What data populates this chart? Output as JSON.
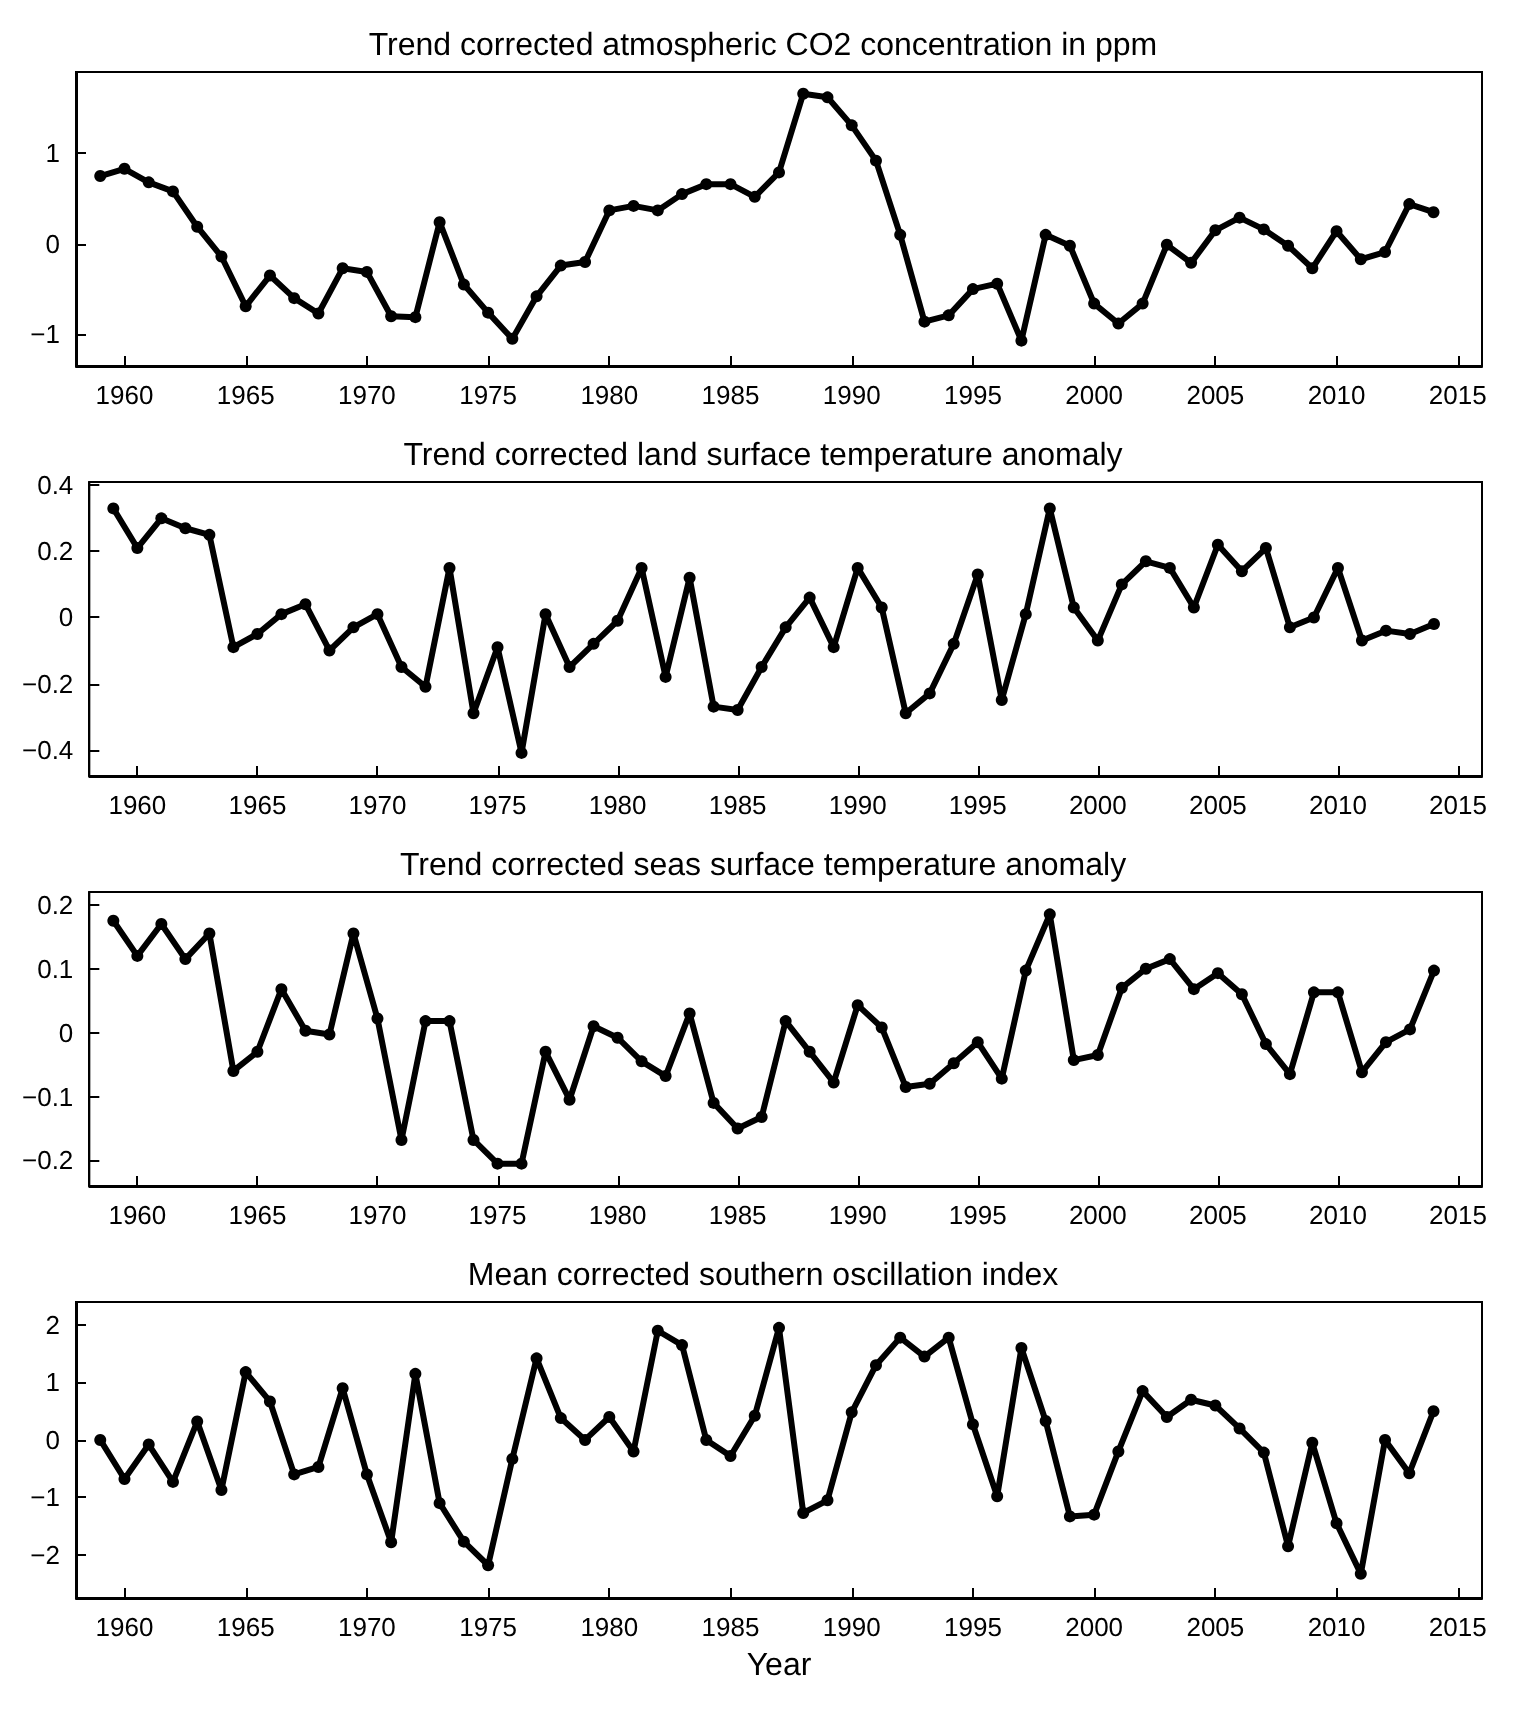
{
  "chart_data": [
    {
      "type": "line",
      "title": "Trend corrected atmospheric CO2 concentration in ppm",
      "color": "#000000",
      "marker": "circle",
      "x": [
        1959,
        1960,
        1961,
        1962,
        1963,
        1964,
        1965,
        1966,
        1967,
        1968,
        1969,
        1970,
        1971,
        1972,
        1973,
        1974,
        1975,
        1976,
        1977,
        1978,
        1979,
        1980,
        1981,
        1982,
        1983,
        1984,
        1985,
        1986,
        1987,
        1988,
        1989,
        1990,
        1991,
        1992,
        1993,
        1994,
        1995,
        1996,
        1997,
        1998,
        1999,
        2000,
        2001,
        2002,
        2003,
        2004,
        2005,
        2006,
        2007,
        2008,
        2009,
        2010,
        2011,
        2012,
        2013,
        2014
      ],
      "values": [
        0.75,
        0.83,
        0.68,
        0.58,
        0.19,
        -0.14,
        -0.69,
        -0.35,
        -0.6,
        -0.77,
        -0.27,
        -0.31,
        -0.8,
        -0.81,
        0.24,
        -0.45,
        -0.76,
        -1.05,
        -0.58,
        -0.24,
        -0.2,
        0.37,
        0.42,
        0.37,
        0.55,
        0.66,
        0.66,
        0.52,
        0.79,
        1.66,
        1.62,
        1.31,
        0.92,
        0.1,
        -0.86,
        -0.79,
        -0.5,
        -0.44,
        -1.07,
        0.1,
        -0.02,
        -0.66,
        -0.88,
        -0.66,
        -0.01,
        -0.21,
        0.15,
        0.29,
        0.16,
        -0.02,
        -0.27,
        0.14,
        -0.17,
        -0.09,
        0.44,
        0.35
      ],
      "xlim": [
        1958,
        2016
      ],
      "xticks": [
        1960,
        1965,
        1970,
        1975,
        1980,
        1985,
        1990,
        1995,
        2000,
        2005,
        2010,
        2015
      ],
      "ylim": [
        -1.35,
        1.9
      ],
      "yticks": [
        -1,
        0,
        1
      ]
    },
    {
      "type": "line",
      "title": "Trend corrected land surface temperature anomaly",
      "color": "#000000",
      "marker": "circle",
      "x": [
        1959,
        1960,
        1961,
        1962,
        1963,
        1964,
        1965,
        1966,
        1967,
        1968,
        1969,
        1970,
        1971,
        1972,
        1973,
        1974,
        1975,
        1976,
        1977,
        1978,
        1979,
        1980,
        1981,
        1982,
        1983,
        1984,
        1985,
        1986,
        1987,
        1988,
        1989,
        1990,
        1991,
        1992,
        1993,
        1994,
        1995,
        1996,
        1997,
        1998,
        1999,
        2000,
        2001,
        2002,
        2003,
        2004,
        2005,
        2006,
        2007,
        2008,
        2009,
        2010,
        2011,
        2012,
        2013,
        2014
      ],
      "values": [
        0.33,
        0.21,
        0.3,
        0.27,
        0.25,
        -0.09,
        -0.05,
        0.01,
        0.04,
        -0.1,
        -0.03,
        0.01,
        -0.15,
        -0.21,
        0.15,
        -0.29,
        -0.09,
        -0.41,
        0.01,
        -0.15,
        -0.08,
        -0.01,
        0.15,
        -0.18,
        0.12,
        -0.27,
        -0.28,
        -0.15,
        -0.03,
        0.06,
        -0.09,
        0.15,
        0.03,
        -0.29,
        -0.23,
        -0.08,
        0.13,
        -0.25,
        0.01,
        0.33,
        0.03,
        -0.07,
        0.1,
        0.17,
        0.15,
        0.03,
        0.22,
        0.14,
        0.21,
        -0.03,
        0,
        0.15,
        -0.07,
        -0.04,
        -0.05,
        -0.02
      ],
      "xlim": [
        1958,
        2016
      ],
      "xticks": [
        1960,
        1965,
        1970,
        1975,
        1980,
        1985,
        1990,
        1995,
        2000,
        2005,
        2010,
        2015
      ],
      "ylim": [
        -0.48,
        0.41
      ],
      "yticks": [
        -0.4,
        -0.2,
        0,
        0.2,
        0.4
      ]
    },
    {
      "type": "line",
      "title": "Trend corrected seas surface temperature anomaly",
      "color": "#000000",
      "marker": "circle",
      "x": [
        1959,
        1960,
        1961,
        1962,
        1963,
        1964,
        1965,
        1966,
        1967,
        1968,
        1969,
        1970,
        1971,
        1972,
        1973,
        1974,
        1975,
        1976,
        1977,
        1978,
        1979,
        1980,
        1981,
        1982,
        1983,
        1984,
        1985,
        1986,
        1987,
        1988,
        1989,
        1990,
        1991,
        1992,
        1993,
        1994,
        1995,
        1996,
        1997,
        1998,
        1999,
        2000,
        2001,
        2002,
        2003,
        2004,
        2005,
        2006,
        2007,
        2008,
        2009,
        2010,
        2011,
        2012,
        2013,
        2014
      ],
      "values": [
        0.175,
        0.12,
        0.17,
        0.115,
        0.155,
        -0.06,
        -0.03,
        0.068,
        0.003,
        -0.003,
        0.155,
        0.022,
        -0.168,
        0.018,
        0.018,
        -0.168,
        -0.205,
        -0.205,
        -0.03,
        -0.105,
        0.01,
        -0.008,
        -0.045,
        -0.068,
        0.03,
        -0.11,
        -0.15,
        -0.132,
        0.018,
        -0.03,
        -0.078,
        0.043,
        0.008,
        -0.085,
        -0.08,
        -0.048,
        -0.015,
        -0.072,
        0.097,
        0.185,
        -0.043,
        -0.035,
        0.07,
        0.1,
        0.115,
        0.068,
        0.093,
        0.06,
        -0.018,
        -0.065,
        0.063,
        0.063,
        -0.062,
        -0.015,
        0.005,
        0.097
      ],
      "xlim": [
        1958,
        2016
      ],
      "xticks": [
        1960,
        1965,
        1970,
        1975,
        1980,
        1985,
        1990,
        1995,
        2000,
        2005,
        2010,
        2015
      ],
      "ylim": [
        -0.24,
        0.22
      ],
      "yticks": [
        -0.2,
        -0.1,
        0,
        0.1,
        0.2
      ]
    },
    {
      "type": "line",
      "title": "Mean corrected southern oscillation index",
      "xlabel": "Year",
      "color": "#000000",
      "marker": "circle",
      "x": [
        1959,
        1960,
        1961,
        1962,
        1963,
        1964,
        1965,
        1966,
        1967,
        1968,
        1969,
        1970,
        1971,
        1972,
        1973,
        1974,
        1975,
        1976,
        1977,
        1978,
        1979,
        1980,
        1981,
        1982,
        1983,
        1984,
        1985,
        1986,
        1987,
        1988,
        1989,
        1990,
        1991,
        1992,
        1993,
        1994,
        1995,
        1996,
        1997,
        1998,
        1999,
        2000,
        2001,
        2002,
        2003,
        2004,
        2005,
        2006,
        2007,
        2008,
        2009,
        2010,
        2011,
        2012,
        2013,
        2014
      ],
      "values": [
        0,
        -0.68,
        -0.08,
        -0.73,
        0.32,
        -0.87,
        1.18,
        0.67,
        -0.6,
        -0.47,
        0.9,
        -0.6,
        -1.78,
        1.15,
        -1.1,
        -1.77,
        -2.18,
        -0.33,
        1.42,
        0.38,
        0,
        0.4,
        -0.2,
        1.9,
        1.65,
        0,
        -0.28,
        0.42,
        1.95,
        -1.27,
        -1.05,
        0.48,
        1.3,
        1.78,
        1.45,
        1.78,
        0.27,
        -0.98,
        1.6,
        0.33,
        -1.33,
        -1.3,
        -0.2,
        0.85,
        0.4,
        0.7,
        0.6,
        0.2,
        -0.22,
        -1.85,
        -0.05,
        -1.45,
        -2.33,
        0,
        -0.58,
        0.5
      ],
      "xlim": [
        1958,
        2016
      ],
      "xticks": [
        1960,
        1965,
        1970,
        1975,
        1980,
        1985,
        1990,
        1995,
        2000,
        2005,
        2010,
        2015
      ],
      "ylim": [
        -2.75,
        2.4
      ],
      "yticks": [
        -2,
        -1,
        0,
        1,
        2
      ]
    }
  ]
}
